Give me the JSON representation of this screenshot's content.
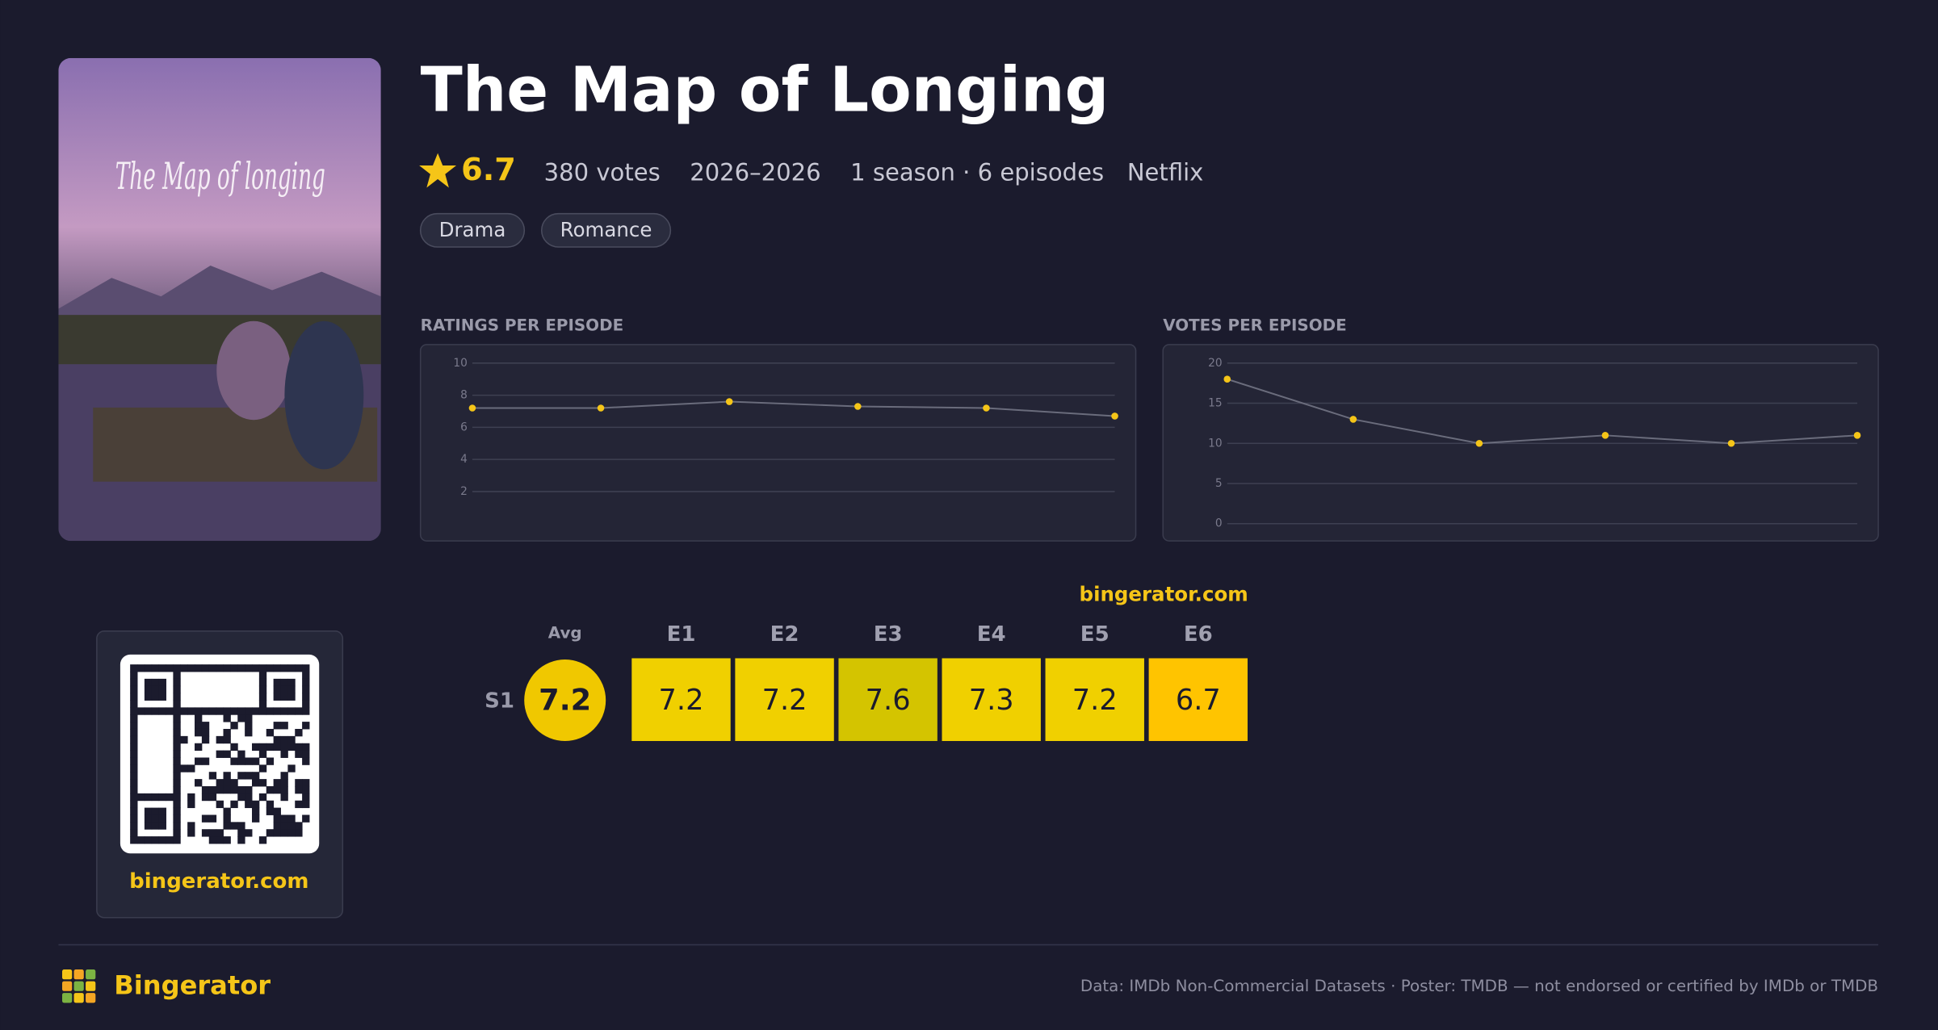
{
  "poster": {
    "text": "The Map of longing"
  },
  "header": {
    "title": "The Map of Longing",
    "rating": 6.7,
    "votes": "380 votes",
    "years": "2026–2026",
    "seasons": "1 season · 6 episodes",
    "network": "Netflix",
    "genres": [
      "Drama",
      "Romance"
    ]
  },
  "chart_data": [
    {
      "type": "line",
      "title": "RATINGS PER EPISODE",
      "values": [
        7.2,
        7.2,
        7.6,
        7.3,
        7.2,
        6.7
      ],
      "ylim": [
        0,
        10
      ],
      "yticks": [
        2,
        4,
        6,
        8,
        10
      ],
      "color": "#f5c518",
      "line_color": "#6a6c7c",
      "grid": true
    },
    {
      "type": "line",
      "title": "VOTES PER EPISODE",
      "values": [
        18,
        13,
        10,
        11,
        10,
        11
      ],
      "ylim": [
        0,
        20
      ],
      "yticks": [
        0,
        5,
        10,
        15,
        20
      ],
      "color": "#f5c518",
      "line_color": "#6a6c7c",
      "grid": true
    }
  ],
  "heatmap": {
    "site": "bingerator.com",
    "avg_label": "Avg",
    "avg": 7.2,
    "avg_color": "#f0c800",
    "season": "S1",
    "episodes": [
      "E1",
      "E2",
      "E3",
      "E4",
      "E5",
      "E6"
    ],
    "ratings": [
      7.2,
      7.2,
      7.6,
      7.3,
      7.2,
      6.7
    ],
    "colors": [
      "#f0d000",
      "#f0d000",
      "#d4c400",
      "#f0d000",
      "#f0d000",
      "#ffc400"
    ]
  },
  "qr": {
    "site": "bingerator.com"
  },
  "footer": {
    "brand": "Bingerator",
    "credits": "Data: IMDb Non-Commercial Datasets · Poster: TMDB — not endorsed or certified by IMDb or TMDB"
  }
}
